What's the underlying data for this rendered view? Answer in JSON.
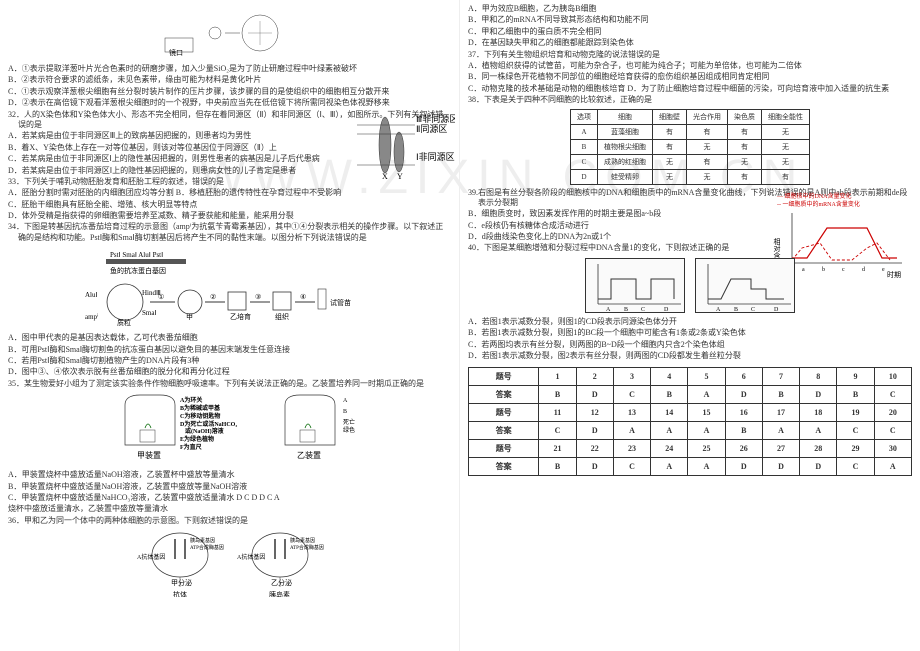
{
  "watermark": "WWW.ZIXIN.COM.CN",
  "left_column": {
    "fig1_caption": "镜口",
    "q_a1": "A．①表示提取洋葱叶片光合色素时的研磨步骤，加入少量SiO₂是为了防止研磨过程中叶绿素被破坏",
    "q_b1": "B．②表示符合要求的滤纸条，未见色素带，缘由可能为材料是黄化叶片",
    "q_c1": "C．①表示观察洋葱根尖细胞有丝分裂时装片制作的压片步骤，该步骤的目的是使组织中的细胞相互分散开来",
    "q_d1": "D．②表示在高倍镜下观看洋葱根尖细胞时的一个视野，中央前应当先在低倍镜下将所需同视染色体视野移来",
    "q32": "32．人的X染色体和Y染色体大小、形态不完全相同，但存在着同源区（Ⅱ）和非同源区（Ⅰ、Ⅲ），如图所示。下列有关叙述错误的是",
    "q32_a": "A．若某病是由位于非同源区Ⅲ上的致病基因把握的，则患者均为男性",
    "q32_b": "B．着X、Y染色体上存在一对等位基因，则该对等位基因位于同源区（Ⅱ）上",
    "q32_c": "C．若某病是由位于非同源区Ⅰ上的隐性基因把握的，则男性患者的病基因是儿子后代患病",
    "q32_d": "D．若某病是由位于非同源区Ⅰ上的隐性基因把握的，则患病女性的儿子肯定是患者",
    "chromosome_labels": {
      "III": "Ⅲ非同源区",
      "II": "Ⅱ同源区",
      "I": "Ⅰ非同源区",
      "X": "X",
      "Y": "Y"
    },
    "q33": "33．下列关于哺乳动物胚胎发育和胚胎工程的叙述，错误的是",
    "q33_a": "A．胚胎分割时需对胚胎的内细胞团应均等分割  B．移植胚胎的遗传特性在孕育过程中不受影响",
    "q33_c": "C．胚胎干细胞具有胚胎全能、增殖、核大明显等特点",
    "q33_d": "D．体外受精是指获得的卵细胞需要培养至减数、精子要获能和能量，能采用分裂",
    "q34": "34．下图是转基因抗冻番茄培育过程的示意图（ampⁱ为抗氨苄青霉素基因），其中①④分裂表示相关的操作步骤。以下叙述正确的是结构和功能。PstⅠ酶和SmaⅠ酶切割基因后将产生不同的黏性末端。以图分析下列说法错误的是",
    "plasmid_labels": {
      "pst": "PstⅠ",
      "sma": "SmaⅠ",
      "alu": "AluⅠ",
      "hind": "HindⅢ",
      "amp": "ampⁱ",
      "plasmid": "质粒",
      "fish": "鱼的抗冻蛋白基因",
      "tube": "试管苗"
    },
    "q34_a": "A．图中甲代表的是基因表达载体，乙可代表番茄细胞",
    "q34_b": "B．可用PstⅠ酶和SmaⅠ酶切割鱼的抗冻蛋白基因以避免目的基因末端发生任意连接",
    "q34_c": "C．若用PstⅠ酶和SmaⅠ酶切割植物产生的DNA片段有3种",
    "q34_d": "D．图中③、④依次表示脱有丝番茄细胞的脱分化和再分化过程",
    "q35": "35．某生物爱好小组为了测定该实验条件作物细胞呼吸速率。下列有关说法正确的是。乙装置培养同一时期瓜正确的是",
    "device_labels": {
      "A": "A为环关",
      "B": "B为稀碱或甲基",
      "C": "C为移动钥匙物",
      "D": "D为死亡或活NaHCO₃或(NaOH)溶液",
      "E": "E为绿色植物",
      "F": "F为直尺",
      "jia": "甲装置",
      "yi": "乙装置"
    },
    "q35_a": "A．甲装置烧杯中盛放适量NaOH溶液，乙装置杯中盛放等量清水",
    "q35_b": "B．甲装置烧杯中盛放适量NaOH溶液，乙装置中盛放等量NaOH溶液",
    "q35_c": "C．甲装置烧杯中盛放适量NaHCO₃溶液，乙装置中盛放适量清水  D  C  D  D  C  A",
    "q35_d": "烧杯中盛放适量清水，乙装置中盛放等量清水",
    "q36": "36．甲和乙为同一个体中的两种体细胞的示意图。下则叙述错误的是",
    "cell_labels": {
      "top": "胰岛素基因\nATP合成酶基因",
      "A": "A抗体基因",
      "jia": "甲分泌",
      "yi": "乙分泌",
      "ab": "抗体",
      "ins": "胰岛素"
    }
  },
  "right_column": {
    "q36_a": "A．甲为效应B细胞，乙为胰岛B细胞",
    "q36_b": "B．甲和乙的mRNA不同导致其形态结构和功能不同",
    "q36_c": "C．甲和乙细胞中的蛋白质不完全相同",
    "q36_d": "D．在基因缺失甲和乙的细胞都能跟踪到染色体",
    "q37": "37．下列有关生物组织培育和动物克隆的说法错误的是",
    "q37_a": "A．植物组织获得的试管苗，可能为杂合子，也可能为纯合子；可能为单倍体，也可能为二倍体",
    "q37_b": "B．同一株绿色开花植物不同部位的细胞经培育获得的愈伤组织基因组成相同肯定相同",
    "q37_c": "C．动物克隆的技术基础是动物的细胞核培育 D．为了防止细胞培育过程中细菌的污染，可向培育液中加入适量的抗生素",
    "q38": "38．下表是关于四种不同细胞的比较叙述，正确的是",
    "table38": {
      "headers": [
        "选项",
        "细胞",
        "细胞壁",
        "光合作用",
        "染色质",
        "细胞全能性"
      ],
      "rows": [
        [
          "A",
          "蓝藻细胞",
          "有",
          "有",
          "有",
          "无"
        ],
        [
          "B",
          "植物根尖细胞",
          "有",
          "无",
          "有",
          "无"
        ],
        [
          "C",
          "成熟的红细胞",
          "无",
          "有",
          "无",
          "无"
        ],
        [
          "D",
          "蛙受精卵",
          "无",
          "无",
          "有",
          "有"
        ]
      ]
    },
    "q39": "39.右图是有丝分裂各阶段的细胞核中的DNA和细胞质中的mRNA含量变化曲线，下列说法错误的是A则中ab段表示前期和de段表示分裂期",
    "q39_b": "B．细胞质变时，致因素发挥作用的时期主要是图a~b段",
    "q39_c": "C．e段核仍有核糖体合成活动进行",
    "q39_d": "D．d段曲线染色变化上的DNA为2n或1个",
    "chart_legend": {
      "nuclear_dna": "细胞核中的DNA含量变化",
      "mrna": "一细胞质中的mRNA含量变化",
      "xlabel": "时期",
      "ylabel_rotated": "相对含量"
    },
    "chart_data": {
      "x_ticks": [
        "a",
        "b",
        "c",
        "d",
        "e"
      ],
      "dna_line_color": "#c00",
      "mrna_line_color": "#c00",
      "dna_style": "solid",
      "mrna_style": "dashed"
    },
    "q40": "40．下图是某细胞增殖和分裂过程中DNA含量1的变化，下则叙述正确的是",
    "chart40": {
      "panels": [
        {
          "xlabel": "",
          "marks": [
            "A",
            "B",
            "C",
            "D"
          ],
          "style": "step"
        },
        {
          "xlabel": "",
          "marks": [
            "A",
            "B",
            "C",
            "D"
          ],
          "style": "step"
        }
      ]
    },
    "q40_a": "A．若图1表示减数分裂，则图1的CD段表示同源染色体分开",
    "q40_b": "B．若图1表示减数分裂，则图1的BC段一个细胞中可能含有1条或2条或Y染色体",
    "q40_c": "C．若两图均表示有丝分裂，则两图的B~D段一个细胞内只含2个染色体组",
    "q40_d": "D．若图1表示减数分裂，图2表示有丝分裂，则两图的CD段都发生着丝粒分裂",
    "answer_table": {
      "headers1": [
        "题号",
        "1",
        "2",
        "3",
        "4",
        "5",
        "6",
        "7",
        "8",
        "9",
        "10"
      ],
      "answers1": [
        "答案",
        "B",
        "D",
        "C",
        "B",
        "A",
        "D",
        "B",
        "D",
        "B",
        "C"
      ],
      "headers2": [
        "题号",
        "11",
        "12",
        "13",
        "14",
        "15",
        "16",
        "17",
        "18",
        "19",
        "20"
      ],
      "answers2": [
        "答案",
        "C",
        "D",
        "A",
        "A",
        "A",
        "B",
        "A",
        "A",
        "C",
        "C"
      ],
      "headers3": [
        "题号",
        "21",
        "22",
        "23",
        "24",
        "25",
        "26",
        "27",
        "28",
        "29",
        "30"
      ],
      "answers3": [
        "答案",
        "B",
        "D",
        "C",
        "A",
        "A",
        "D",
        "D",
        "D",
        "C",
        "A"
      ]
    }
  }
}
